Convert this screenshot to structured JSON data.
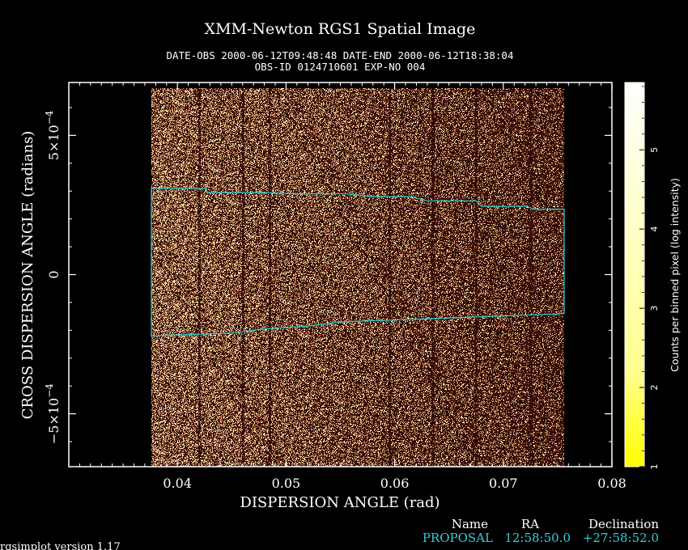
{
  "chart_data": {
    "type": "heatmap",
    "title": "XMM-Newton  RGS1 Spatial Image",
    "subtitle_line1": "DATE-OBS 2000-06-12T09:48:48   DATE-END 2000-06-12T18:38:04",
    "subtitle_line2": "OBS-ID 0124710601 EXP-NO 004",
    "xlabel": "DISPERSION ANGLE (rad)",
    "ylabel": "CROSS DISPERSION ANGLE (radians)",
    "xlim": [
      0.03,
      0.08
    ],
    "ylim": [
      -0.00069,
      0.00069
    ],
    "x_ticks": [
      {
        "value": 0.04,
        "label": "0.04"
      },
      {
        "value": 0.05,
        "label": "0.05"
      },
      {
        "value": 0.06,
        "label": "0.06"
      },
      {
        "value": 0.07,
        "label": "0.07"
      },
      {
        "value": 0.08,
        "label": "0.08"
      }
    ],
    "y_ticks": [
      {
        "value": 0.0005,
        "mant": "5×10",
        "exp": "−4"
      },
      {
        "value": 0,
        "mant": "0",
        "exp": ""
      },
      {
        "value": -0.0005,
        "mant": "−5×10",
        "exp": "−4"
      }
    ],
    "data_extent": {
      "x": [
        0.0376,
        0.0756
      ],
      "y": [
        -0.00069,
        0.00067
      ]
    },
    "extraction_region": {
      "upper": [
        [
          0.0376,
          0.00031
        ],
        [
          0.0425,
          0.00031
        ],
        [
          0.0428,
          0.000295
        ],
        [
          0.048,
          0.000295
        ],
        [
          0.051,
          0.00029
        ],
        [
          0.0555,
          0.00029
        ],
        [
          0.058,
          0.00028
        ],
        [
          0.0615,
          0.00028
        ],
        [
          0.063,
          0.000265
        ],
        [
          0.0675,
          0.000265
        ],
        [
          0.068,
          0.000245
        ],
        [
          0.0722,
          0.000245
        ],
        [
          0.0728,
          0.000235
        ],
        [
          0.0756,
          0.000235
        ]
      ],
      "lower": [
        [
          0.0376,
          -0.00022
        ],
        [
          0.045,
          -0.00021
        ],
        [
          0.048,
          -0.000195
        ],
        [
          0.052,
          -0.000185
        ],
        [
          0.055,
          -0.00017
        ],
        [
          0.062,
          -0.00016
        ],
        [
          0.0756,
          -0.00014
        ]
      ]
    },
    "colorbar": {
      "label": "Counts per binned pixel (log intensity)",
      "range": [
        1,
        5.85
      ],
      "ticks": [
        "1",
        "2",
        "3",
        "4",
        "5"
      ],
      "colors": [
        "#ffff00",
        "#ffffa0",
        "#ffffff"
      ]
    },
    "image_colors": {
      "background": "#000000",
      "low": "#2a0905",
      "mid": "#5a1a10",
      "high": "#ffe8b0"
    },
    "region_color": "#2fd0d8",
    "grid": false
  },
  "target_table": {
    "headers": [
      "Name",
      "RA",
      "Declination"
    ],
    "row": [
      "PROPOSAL",
      "12:58:50.0",
      "+27:58:52.0"
    ]
  },
  "footer": {
    "version": "rgsimplot version 1.17"
  }
}
